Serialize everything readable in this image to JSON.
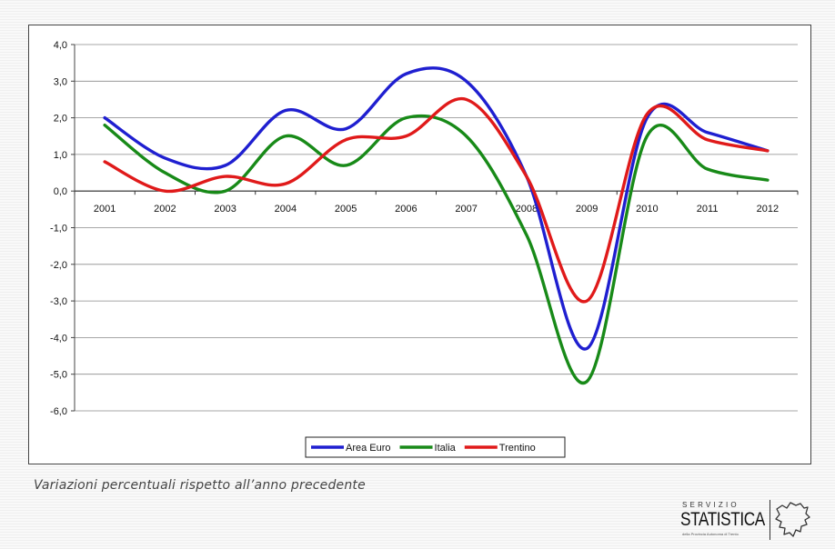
{
  "caption": "Variazioni percentuali rispetto all’anno precedente",
  "logo": {
    "line1": "SERVIZIO",
    "line2": "STATISTICA",
    "line3": "della Provincia Autonoma di Trento",
    "icon": "trentino-map-outline-icon"
  },
  "chart_data": {
    "type": "line",
    "title": "",
    "xlabel": "",
    "ylabel": "",
    "categories": [
      "2001",
      "2002",
      "2003",
      "2004",
      "2005",
      "2006",
      "2007",
      "2008",
      "2009",
      "2010",
      "2011",
      "2012"
    ],
    "ylim": [
      -6,
      4
    ],
    "yticks": [
      4,
      3,
      2,
      1,
      0,
      -1,
      -2,
      -3,
      -4,
      -5,
      -6
    ],
    "ytick_labels": [
      "4,0",
      "3,0",
      "2,0",
      "1,0",
      "0,0",
      "-1,0",
      "-2,0",
      "-3,0",
      "-4,0",
      "-5,0",
      "-6,0"
    ],
    "grid": true,
    "smooth": true,
    "legend_position": "bottom",
    "series": [
      {
        "name": "Area Euro",
        "color": "#1f1fd0",
        "values": [
          2.0,
          0.9,
          0.7,
          2.2,
          1.7,
          3.2,
          3.0,
          0.4,
          -4.3,
          2.0,
          1.6,
          1.1
        ]
      },
      {
        "name": "Italia",
        "color": "#188a18",
        "values": [
          1.8,
          0.5,
          0.0,
          1.5,
          0.7,
          2.0,
          1.5,
          -1.2,
          -5.2,
          1.5,
          0.6,
          0.3
        ]
      },
      {
        "name": "Trentino",
        "color": "#e01a1a",
        "values": [
          0.8,
          0.0,
          0.4,
          0.2,
          1.4,
          1.5,
          2.5,
          0.4,
          -3.0,
          2.1,
          1.4,
          1.1
        ]
      }
    ]
  }
}
